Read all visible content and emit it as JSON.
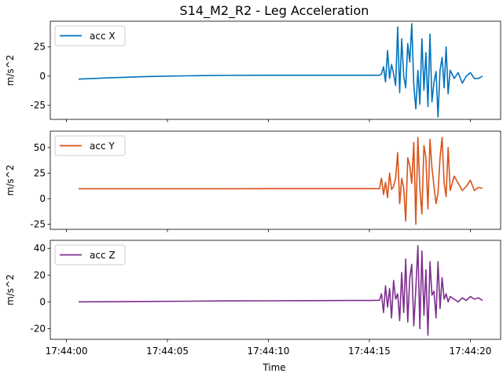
{
  "chart_data": {
    "type": "line",
    "title": "S14_M2_R2 - Leg Acceleration",
    "xlabel": "Time",
    "x_tick_labels": [
      "17:44:00",
      "17:44:05",
      "17:44:10",
      "17:44:15",
      "17:44:20"
    ],
    "x_tick_seconds": [
      0,
      5,
      10,
      15,
      20
    ],
    "xlim_seconds": [
      -0.8,
      21.5
    ],
    "x_unit": "seconds after 17:44:00",
    "panels": [
      {
        "ylabel": "m/s^2",
        "ylim": [
          -37,
          47
        ],
        "yticks": [
          -25,
          0,
          25
        ],
        "series": {
          "name": "acc X",
          "color": "#0072BD",
          "x": [
            0.6,
            2,
            4,
            6,
            8,
            10,
            12,
            14,
            15,
            15.5,
            15.6,
            15.7,
            15.8,
            15.9,
            16.0,
            16.1,
            16.2,
            16.3,
            16.4,
            16.5,
            16.6,
            16.7,
            16.8,
            16.9,
            17.0,
            17.1,
            17.2,
            17.3,
            17.4,
            17.5,
            17.6,
            17.7,
            17.8,
            17.9,
            18.0,
            18.1,
            18.2,
            18.3,
            18.4,
            18.5,
            18.6,
            18.7,
            18.8,
            18.9,
            19.0,
            19.2,
            19.4,
            19.6,
            19.8,
            20.0,
            20.2,
            20.4,
            20.6
          ],
          "values": [
            -2.5,
            -1.5,
            -0.3,
            0.3,
            0.6,
            0.8,
            0.8,
            0.8,
            0.8,
            0.8,
            2,
            8,
            -5,
            22,
            -2,
            10,
            2,
            -8,
            42,
            -14,
            32,
            0,
            -10,
            28,
            12,
            45,
            -8,
            -28,
            5,
            -24,
            32,
            -12,
            20,
            -26,
            36,
            -22,
            -5,
            4,
            -35,
            5,
            16,
            -10,
            25,
            -15,
            5,
            -2,
            3,
            -6,
            0,
            3,
            -2,
            -2,
            0
          ]
        }
      },
      {
        "ylabel": "m/s^2",
        "ylim": [
          -30,
          66
        ],
        "yticks": [
          -25,
          0,
          25,
          50
        ],
        "series": {
          "name": "acc Y",
          "color": "#D95319",
          "x": [
            0.6,
            2,
            4,
            6,
            8,
            10,
            12,
            14,
            15,
            15.5,
            15.6,
            15.7,
            15.8,
            15.9,
            16.0,
            16.1,
            16.2,
            16.3,
            16.4,
            16.5,
            16.6,
            16.7,
            16.8,
            16.9,
            17.0,
            17.1,
            17.2,
            17.3,
            17.4,
            17.5,
            17.6,
            17.7,
            17.8,
            17.9,
            18.0,
            18.1,
            18.2,
            18.3,
            18.4,
            18.5,
            18.6,
            18.7,
            18.8,
            18.9,
            19.0,
            19.2,
            19.4,
            19.6,
            19.8,
            20.0,
            20.2,
            20.4,
            20.6
          ],
          "values": [
            9.7,
            9.7,
            9.7,
            9.7,
            9.7,
            9.8,
            9.8,
            9.8,
            9.8,
            9.8,
            20,
            4,
            16,
            1,
            25,
            9,
            12,
            20,
            45,
            -5,
            20,
            10,
            -22,
            40,
            32,
            15,
            55,
            -25,
            60,
            10,
            -15,
            52,
            40,
            -10,
            58,
            30,
            12,
            -5,
            5,
            40,
            60,
            15,
            2,
            50,
            8,
            22,
            15,
            8,
            12,
            18,
            8,
            11,
            10
          ]
        }
      },
      {
        "ylabel": "m/s^2",
        "ylim": [
          -28,
          46
        ],
        "yticks": [
          -20,
          0,
          20,
          40
        ],
        "series": {
          "name": "acc Z",
          "color": "#7E2F8E",
          "x": [
            0.6,
            2,
            4,
            6,
            8,
            10,
            12,
            14,
            15,
            15.5,
            15.6,
            15.7,
            15.8,
            15.9,
            16.0,
            16.1,
            16.2,
            16.3,
            16.4,
            16.5,
            16.6,
            16.7,
            16.8,
            16.9,
            17.0,
            17.1,
            17.2,
            17.3,
            17.4,
            17.5,
            17.6,
            17.7,
            17.8,
            17.9,
            18.0,
            18.1,
            18.2,
            18.3,
            18.4,
            18.5,
            18.6,
            18.7,
            18.8,
            18.9,
            19.0,
            19.2,
            19.4,
            19.6,
            19.8,
            20.0,
            20.2,
            20.4,
            20.6
          ],
          "values": [
            0,
            0.1,
            0.3,
            0.5,
            0.7,
            0.8,
            0.9,
            1.0,
            1.0,
            1.2,
            6,
            -8,
            12,
            -4,
            10,
            -12,
            16,
            2,
            6,
            -14,
            22,
            -8,
            32,
            -15,
            18,
            28,
            -18,
            10,
            42,
            -20,
            38,
            -10,
            24,
            -25,
            30,
            5,
            8,
            -12,
            30,
            -5,
            18,
            2,
            6,
            0,
            4,
            2,
            0,
            3,
            1,
            4,
            2,
            3,
            1
          ]
        }
      }
    ]
  }
}
